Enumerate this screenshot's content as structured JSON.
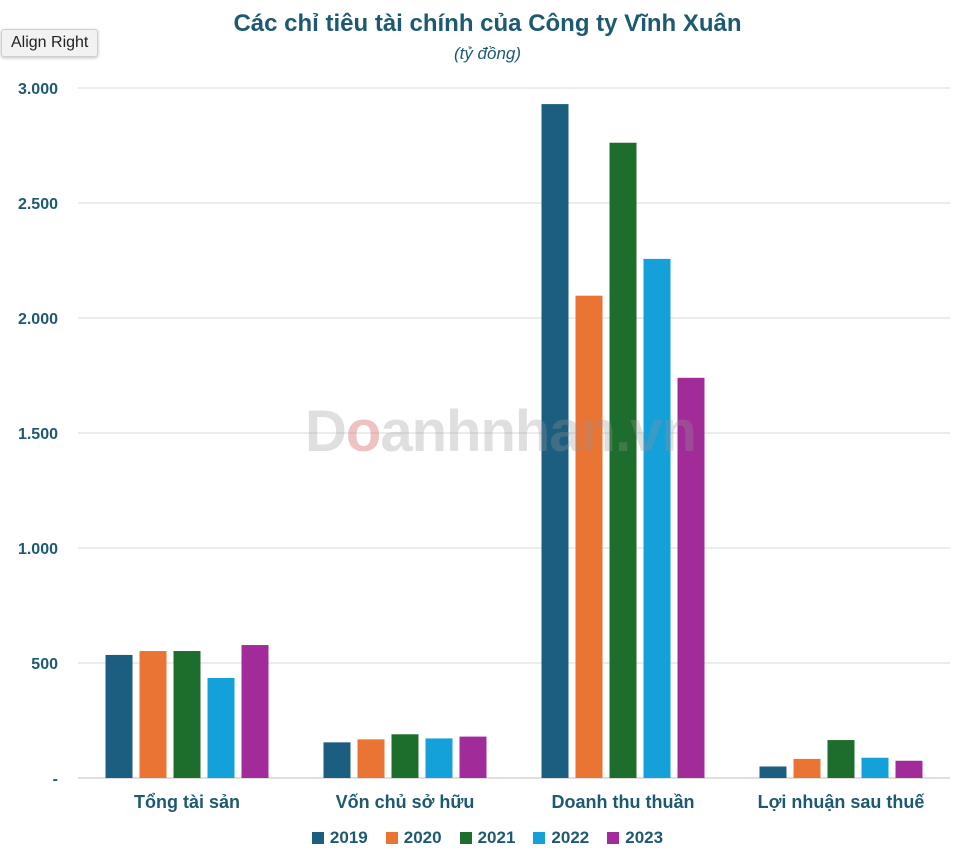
{
  "tooltip": "Align Right",
  "watermark": {
    "prefix": "D",
    "o": "o",
    "rest": "anhnhan.vn"
  },
  "chart_data": {
    "type": "bar",
    "title": "Các chỉ tiêu tài chính của Công ty Vĩnh Xuân",
    "subtitle": "(tỷ đồng)",
    "xlabel": "",
    "ylabel": "",
    "ylim": [
      0,
      3000
    ],
    "yticks": [
      {
        "value": 0,
        "label": "-"
      },
      {
        "value": 500,
        "label": "500"
      },
      {
        "value": 1000,
        "label": "1.000"
      },
      {
        "value": 1500,
        "label": "1.500"
      },
      {
        "value": 2000,
        "label": "2.000"
      },
      {
        "value": 2500,
        "label": "2.500"
      },
      {
        "value": 3000,
        "label": "3.000"
      }
    ],
    "grid": true,
    "legend_position": "bottom",
    "categories": [
      "Tổng tài sản",
      "Vốn chủ sở hữu",
      "Doanh thu thuần",
      "Lợi nhuận sau thuế"
    ],
    "series": [
      {
        "name": "2019",
        "color": "#1b5e80",
        "values": [
          535,
          155,
          2930,
          50
        ]
      },
      {
        "name": "2020",
        "color": "#ea7433",
        "values": [
          552,
          168,
          2097,
          83
        ]
      },
      {
        "name": "2021",
        "color": "#1d6e2c",
        "values": [
          552,
          190,
          2762,
          165
        ]
      },
      {
        "name": "2022",
        "color": "#14a0d8",
        "values": [
          435,
          172,
          2257,
          88
        ]
      },
      {
        "name": "2023",
        "color": "#a12b98",
        "values": [
          578,
          180,
          1740,
          75
        ]
      }
    ]
  }
}
